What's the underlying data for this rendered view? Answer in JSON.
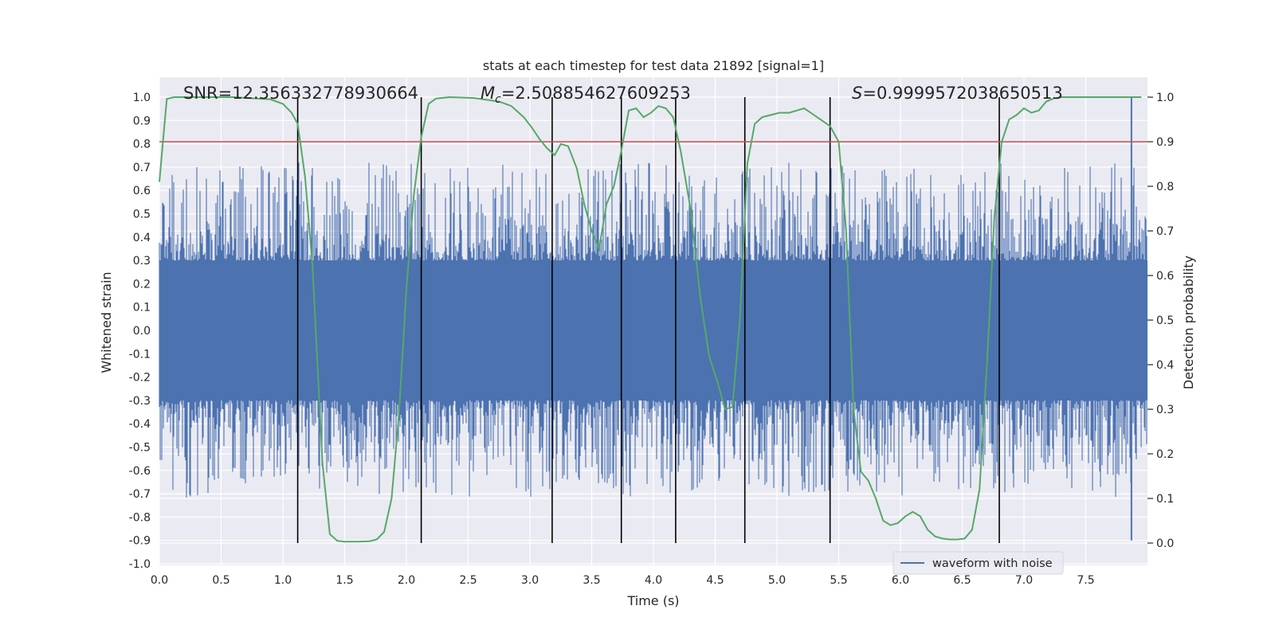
{
  "colors": {
    "plot_bg": "#eaeaf2",
    "grid": "#ffffff",
    "waveform": "#4c72b0",
    "probability": "#55a868",
    "threshold": "#c44e52",
    "marker": "#000000",
    "text": "#262626"
  },
  "chart_data": {
    "type": "line",
    "title": "stats at each timestep for test data 21892 [signal=1]",
    "xlabel": "Time (s)",
    "ylabel": "Whitened strain",
    "y2label": "Detection probability",
    "xlim": [
      0.0,
      8.0
    ],
    "ylim": [
      -1.0,
      1.08
    ],
    "y2lim": [
      -0.05,
      1.0
    ],
    "x_ticks": [
      "0.0",
      "0.5",
      "1.0",
      "1.5",
      "2.0",
      "2.5",
      "3.0",
      "3.5",
      "4.0",
      "4.5",
      "5.0",
      "5.5",
      "6.0",
      "6.5",
      "7.0",
      "7.5"
    ],
    "y_ticks": [
      "-1.0",
      "-0.9",
      "-0.8",
      "-0.7",
      "-0.6",
      "-0.5",
      "-0.4",
      "-0.3",
      "-0.2",
      "-0.1",
      "0.0",
      "0.1",
      "0.2",
      "0.3",
      "0.4",
      "0.5",
      "0.6",
      "0.7",
      "0.8",
      "0.9",
      "1.0"
    ],
    "y2_ticks": [
      "0.0",
      "0.1",
      "0.2",
      "0.3",
      "0.4",
      "0.5",
      "0.6",
      "0.7",
      "0.8",
      "0.9",
      "1.0"
    ],
    "grid": true,
    "legend": {
      "entries": [
        "waveform with noise"
      ],
      "placement": "lower-right"
    },
    "annotations": {
      "snr": "SNR=12.356332778930664",
      "mc_symbol": "M",
      "mc_sub": "c",
      "mc_value": "=2.508854627609253",
      "s_symbol": "S",
      "s_value": "=0.9999572038650513"
    },
    "threshold_probability": 0.9,
    "marker_times": [
      1.12,
      2.12,
      3.18,
      3.74,
      4.18,
      4.74,
      5.43,
      6.8
    ],
    "marker_probability_range": [
      0.0,
      1.0
    ],
    "waveform": {
      "name": "waveform with noise",
      "t_start": 0.0,
      "t_end": 8.0,
      "core_band": [
        -0.3,
        0.3
      ],
      "extreme_spike": {
        "t": 7.87,
        "max": 1.0,
        "min": -0.9
      }
    },
    "series": [
      {
        "name": "detection probability",
        "x": [
          0.0,
          0.06,
          0.12,
          0.3,
          0.6,
          0.9,
          1.0,
          1.07,
          1.12,
          1.18,
          1.24,
          1.32,
          1.38,
          1.44,
          1.5,
          1.6,
          1.7,
          1.76,
          1.82,
          1.88,
          1.94,
          2.0,
          2.06,
          2.12,
          2.18,
          2.24,
          2.35,
          2.55,
          2.75,
          2.85,
          2.95,
          3.02,
          3.08,
          3.14,
          3.2,
          3.25,
          3.31,
          3.38,
          3.44,
          3.5,
          3.56,
          3.62,
          3.68,
          3.74,
          3.8,
          3.86,
          3.92,
          3.98,
          4.04,
          4.1,
          4.16,
          4.22,
          4.3,
          4.38,
          4.45,
          4.52,
          4.58,
          4.64,
          4.7,
          4.76,
          4.82,
          4.88,
          4.95,
          5.02,
          5.1,
          5.16,
          5.22,
          5.3,
          5.43,
          5.5,
          5.56,
          5.62,
          5.68,
          5.74,
          5.8,
          5.86,
          5.92,
          5.98,
          6.04,
          6.1,
          6.16,
          6.22,
          6.28,
          6.34,
          6.4,
          6.46,
          6.52,
          6.58,
          6.64,
          6.7,
          6.76,
          6.82,
          6.88,
          6.94,
          7.0,
          7.06,
          7.12,
          7.18,
          7.24,
          7.3,
          7.45,
          7.7,
          7.95
        ],
        "values": [
          0.81,
          0.996,
          1.0,
          1.0,
          1.0,
          0.995,
          0.985,
          0.965,
          0.94,
          0.82,
          0.62,
          0.18,
          0.02,
          0.005,
          0.003,
          0.003,
          0.004,
          0.008,
          0.025,
          0.1,
          0.29,
          0.57,
          0.78,
          0.91,
          0.985,
          0.997,
          1.0,
          0.998,
          0.99,
          0.98,
          0.955,
          0.93,
          0.905,
          0.885,
          0.87,
          0.895,
          0.89,
          0.84,
          0.76,
          0.7,
          0.66,
          0.76,
          0.8,
          0.88,
          0.97,
          0.975,
          0.955,
          0.965,
          0.98,
          0.975,
          0.955,
          0.88,
          0.75,
          0.55,
          0.42,
          0.36,
          0.3,
          0.305,
          0.5,
          0.85,
          0.94,
          0.955,
          0.96,
          0.965,
          0.965,
          0.97,
          0.975,
          0.96,
          0.935,
          0.9,
          0.7,
          0.3,
          0.16,
          0.14,
          0.1,
          0.05,
          0.04,
          0.045,
          0.06,
          0.07,
          0.06,
          0.03,
          0.015,
          0.01,
          0.008,
          0.008,
          0.01,
          0.03,
          0.12,
          0.4,
          0.73,
          0.9,
          0.95,
          0.96,
          0.975,
          0.965,
          0.97,
          0.99,
          0.997,
          1.0,
          1.0,
          1.0,
          1.0
        ]
      }
    ]
  }
}
